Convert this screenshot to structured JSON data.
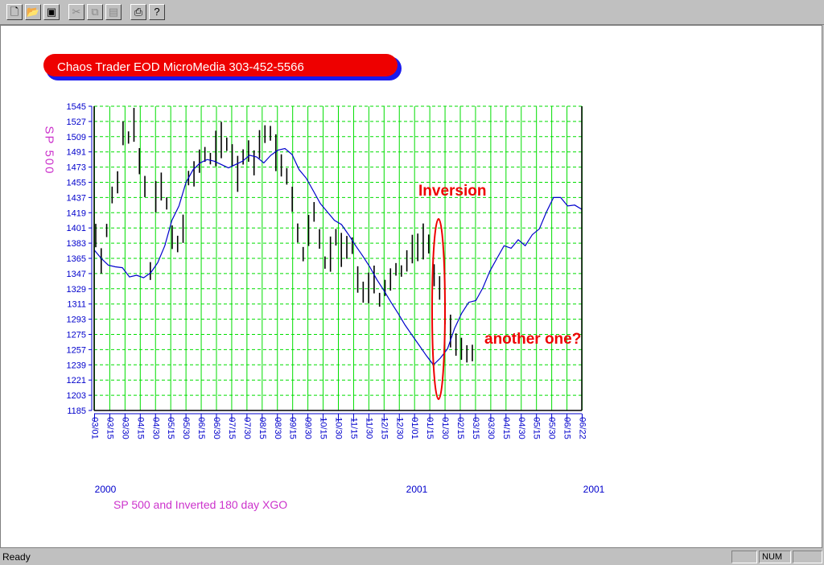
{
  "toolbar": {
    "buttons": [
      {
        "icon": "new-file-icon",
        "glyph": "🗋",
        "enabled": true
      },
      {
        "icon": "open-folder-icon",
        "glyph": "📂",
        "enabled": true
      },
      {
        "icon": "save-disk-icon",
        "glyph": "▣",
        "enabled": true
      },
      {
        "icon": "cut-icon",
        "glyph": "✂",
        "enabled": false
      },
      {
        "icon": "copy-icon",
        "glyph": "⧉",
        "enabled": false
      },
      {
        "icon": "paste-icon",
        "glyph": "▤",
        "enabled": false
      },
      {
        "icon": "print-icon",
        "glyph": "⎙",
        "enabled": true
      },
      {
        "icon": "help-icon",
        "glyph": "?",
        "enabled": true
      }
    ]
  },
  "banner": {
    "title": "Chaos Trader EOD MicroMedia 303-452-5566"
  },
  "status": {
    "text": "Ready",
    "num": "NUM"
  },
  "chart_data": {
    "type": "bar",
    "subtype": "ohlc-with-line",
    "caption": "SP 500 and Inverted 180 day XGO",
    "ylabel": "SP 500",
    "ylim": [
      1185,
      1545
    ],
    "ytick_labels": [
      "1545",
      "1527",
      "1509",
      "1491",
      "1473",
      "1455",
      "1437",
      "1419",
      "1401",
      "1383",
      "1365",
      "1347",
      "1329",
      "1311",
      "1293",
      "1275",
      "1257",
      "1239",
      "1221",
      "1203",
      "1185"
    ],
    "xtick_labels": [
      "03/01",
      "03/15",
      "03/30",
      "04/15",
      "04/30",
      "05/15",
      "05/30",
      "06/15",
      "06/30",
      "07/15",
      "07/30",
      "08/15",
      "08/30",
      "09/15",
      "09/30",
      "10/15",
      "10/30",
      "11/15",
      "11/30",
      "12/15",
      "12/30",
      "01/01",
      "01/15",
      "01/30",
      "02/15",
      "03/15",
      "03/30",
      "04/15",
      "04/30",
      "05/15",
      "05/30",
      "06/15",
      "06/22"
    ],
    "year_labels": [
      "2000",
      "2001",
      "2001"
    ],
    "grid": true,
    "colors": {
      "grid": "#00dd00",
      "bars": "#000000",
      "line": "#0000cc",
      "axis": "#0000cc",
      "annotation": "#ee0000",
      "ylabel": "#cc33cc",
      "caption": "#cc33cc"
    },
    "annotations": [
      {
        "text": "Inversion"
      },
      {
        "text": "another one?"
      }
    ],
    "bar_series": {
      "name": "SP 500",
      "center": [
        1392,
        1362,
        1398,
        1440,
        1455,
        1513,
        1508,
        1523,
        1480,
        1450,
        1350,
        1438,
        1450,
        1430,
        1390,
        1382,
        1400,
        1460,
        1465,
        1480,
        1488,
        1483,
        1495,
        1505,
        1500,
        1487,
        1465,
        1485,
        1492,
        1478,
        1500,
        1512,
        1513,
        1490,
        1475,
        1462,
        1435,
        1395,
        1370,
        1398,
        1420,
        1388,
        1360,
        1370,
        1390,
        1375,
        1378,
        1380,
        1340,
        1325,
        1330,
        1340,
        1316,
        1330,
        1340,
        1352,
        1350,
        1362,
        1376,
        1378,
        1385,
        1382,
        1345,
        1330,
        1300,
        1279,
        1263,
        1258,
        1252,
        1253
      ]
    },
    "line_series": {
      "name": "Inverted 180 day XGO",
      "y": [
        1375,
        1365,
        1357,
        1355,
        1354,
        1343,
        1345,
        1342,
        1348,
        1360,
        1380,
        1410,
        1427,
        1455,
        1470,
        1478,
        1482,
        1480,
        1476,
        1472,
        1476,
        1480,
        1487,
        1485,
        1478,
        1487,
        1493,
        1495,
        1488,
        1470,
        1460,
        1445,
        1430,
        1420,
        1410,
        1405,
        1393,
        1380,
        1368,
        1355,
        1340,
        1327,
        1313,
        1300,
        1286,
        1274,
        1262,
        1250,
        1239,
        1247,
        1258,
        1282,
        1300,
        1313,
        1315,
        1330,
        1350,
        1365,
        1380,
        1377,
        1387,
        1380,
        1393,
        1400,
        1420,
        1437,
        1437,
        1427,
        1428,
        1423
      ]
    }
  }
}
